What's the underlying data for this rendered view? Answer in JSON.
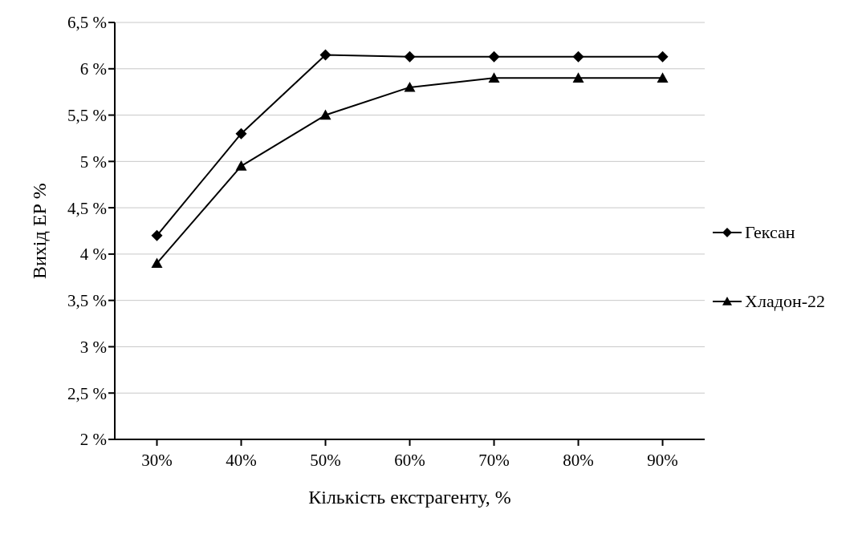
{
  "chart_data": {
    "type": "line",
    "xlabel": "Кількість екстрагенту, %",
    "ylabel": "Вихід ЕР %",
    "categories": [
      "30%",
      "40%",
      "50%",
      "60%",
      "70%",
      "80%",
      "90%"
    ],
    "series": [
      {
        "name": "Гексан",
        "color": "#000000",
        "marker": "diamond",
        "values": [
          4.2,
          5.3,
          6.15,
          6.13,
          6.13,
          6.13,
          6.13
        ]
      },
      {
        "name": "Хладон-22",
        "color": "#000000",
        "marker": "triangle",
        "values": [
          3.9,
          4.95,
          5.5,
          5.8,
          5.9,
          5.9,
          5.9
        ]
      }
    ],
    "ylim": [
      2,
      6.5
    ],
    "yticks": [
      {
        "value": 2,
        "label": "2 %"
      },
      {
        "value": 2.5,
        "label": "2,5 %"
      },
      {
        "value": 3,
        "label": "3 %"
      },
      {
        "value": 3.5,
        "label": "3,5 %"
      },
      {
        "value": 4,
        "label": "4 %"
      },
      {
        "value": 4.5,
        "label": "4,5 %"
      },
      {
        "value": 5,
        "label": "5 %"
      },
      {
        "value": 5.5,
        "label": "5,5 %"
      },
      {
        "value": 6,
        "label": "6 %"
      },
      {
        "value": 6.5,
        "label": "6,5 %"
      }
    ],
    "grid": "y",
    "legend": "right",
    "line_style": "solid"
  }
}
